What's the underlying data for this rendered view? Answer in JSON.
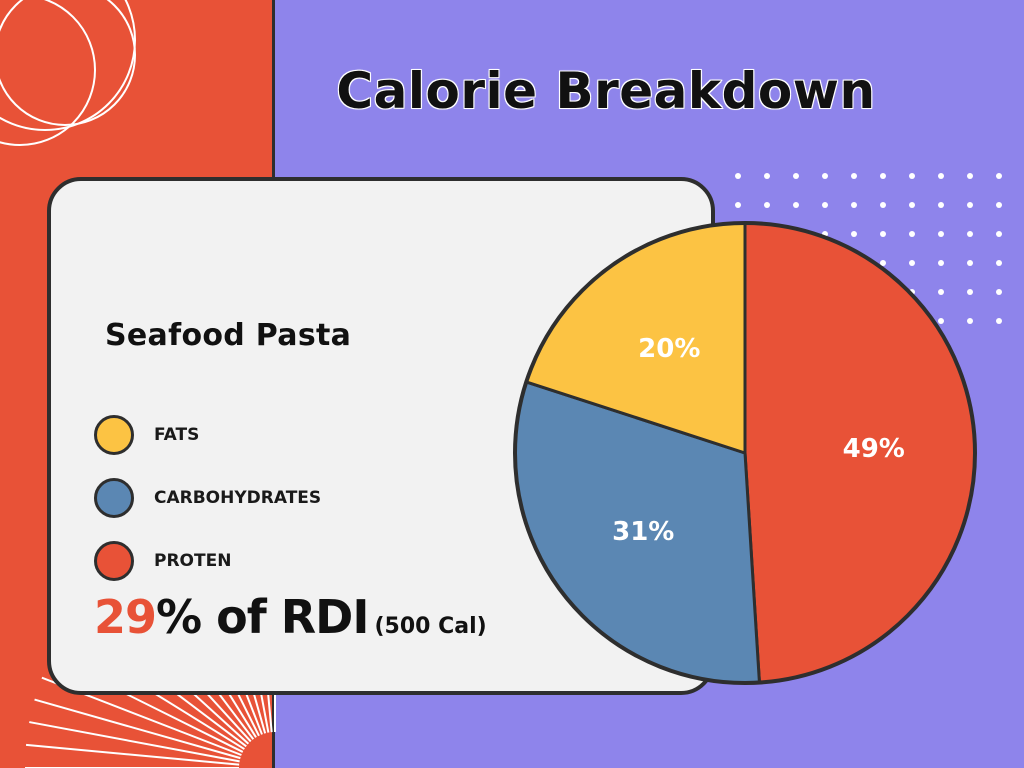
{
  "title": "Calorie Breakdown",
  "dish": "Seafood Pasta",
  "legend": [
    {
      "label": "FATS",
      "color": "#fcc343"
    },
    {
      "label": "CARBOHYDRATES",
      "color": "#5b87b3"
    },
    {
      "label": "PROTEN",
      "color": "#e85237"
    }
  ],
  "rdi": {
    "percent": "29",
    "text": "% of RDI",
    "calories": "(500 Cal)"
  },
  "colors": {
    "background": "#8e84eb",
    "accent": "#e85237",
    "card": "#f2f2f2",
    "outline": "#2e2e2e"
  },
  "chart_data": {
    "type": "pie",
    "title": "Calorie Breakdown",
    "slices": [
      {
        "label": "PROTEN",
        "value": 49,
        "display": "49%",
        "color": "#e85237"
      },
      {
        "label": "CARBOHYDRATES",
        "value": 31,
        "display": "31%",
        "color": "#5b87b3"
      },
      {
        "label": "FATS",
        "value": 20,
        "display": "20%",
        "color": "#fcc343"
      }
    ],
    "start": "12 o'clock",
    "direction": "clockwise",
    "legend_position": "left"
  }
}
